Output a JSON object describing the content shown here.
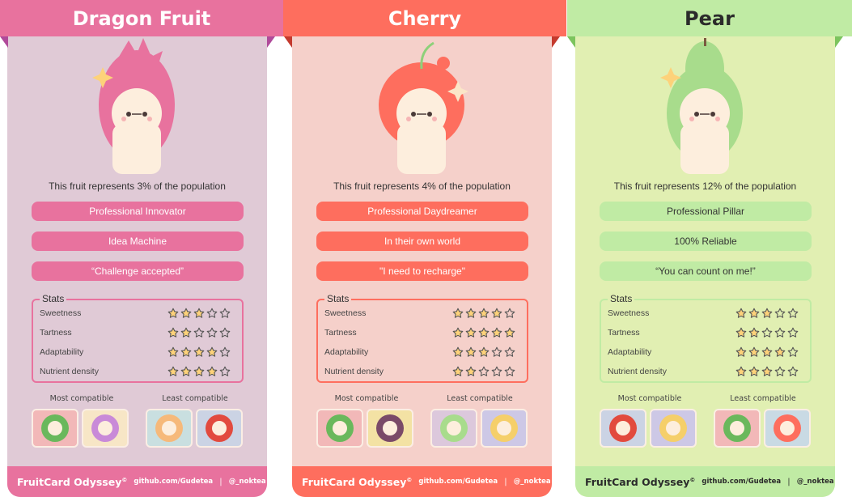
{
  "cards": [
    {
      "title": "Dragon Fruit",
      "population_text": "This fruit represents 3% of the population",
      "traits": [
        "Professional Innovator",
        "Idea Machine",
        "“Challenge accepted”"
      ],
      "stats_title": "Stats",
      "stats": [
        {
          "label": "Sweetness",
          "rating": 3
        },
        {
          "label": "Tartness",
          "rating": 2
        },
        {
          "label": "Adaptability",
          "rating": 4
        },
        {
          "label": "Nutrient density",
          "rating": 4
        }
      ],
      "most_compatible_label": "Most compatible",
      "least_compatible_label": "Least compatible",
      "most_compatible": [
        "watermelon",
        "grape"
      ],
      "least_compatible": [
        "orange",
        "apple"
      ],
      "footer": {
        "brand": "FruitCard Odyssey",
        "mark": "©",
        "github": "github.com/Gudetea",
        "separator": "|",
        "handle": "@_noktea"
      },
      "colors": {
        "banner": "#e8729e",
        "banner_text": "#ffffff",
        "body": "#e0cad6",
        "pill": "#e8729e",
        "pill_text": "#ffffff",
        "fold": "#b04a9a",
        "footer": "#e8729e",
        "footer_text": "#ffffff",
        "fruit": "#e8729e"
      }
    },
    {
      "title": "Cherry",
      "population_text": "This fruit represents 4% of the population",
      "traits": [
        "Professional Daydreamer",
        "In their own world",
        "\"I need to recharge\""
      ],
      "stats_title": "Stats",
      "stats": [
        {
          "label": "Sweetness",
          "rating": 4
        },
        {
          "label": "Tartness",
          "rating": 5
        },
        {
          "label": "Adaptability",
          "rating": 3
        },
        {
          "label": "Nutrient density",
          "rating": 2
        }
      ],
      "most_compatible_label": "Most compatible",
      "least_compatible_label": "Least compatible",
      "most_compatible": [
        "watermelon",
        "fig"
      ],
      "least_compatible": [
        "pear",
        "banana"
      ],
      "footer": {
        "brand": "FruitCard Odyssey",
        "mark": "©",
        "github": "github.com/Gudetea",
        "separator": "|",
        "handle": "@_noktea"
      },
      "colors": {
        "banner": "#fe6e5e",
        "banner_text": "#ffffff",
        "body": "#f5d0ca",
        "pill": "#fe6e5e",
        "pill_text": "#ffffff",
        "fold": "#c43a2e",
        "footer": "#fe6e5e",
        "footer_text": "#ffffff",
        "fruit": "#fe6e5e"
      }
    },
    {
      "title": "Pear",
      "population_text": "This fruit represents 12% of the population",
      "traits": [
        "Professional Pillar",
        "100% Reliable",
        "“You can count on me!”"
      ],
      "stats_title": "Stats",
      "stats": [
        {
          "label": "Sweetness",
          "rating": 3
        },
        {
          "label": "Tartness",
          "rating": 2
        },
        {
          "label": "Adaptability",
          "rating": 4
        },
        {
          "label": "Nutrient density",
          "rating": 3
        }
      ],
      "most_compatible_label": "Most compatible",
      "least_compatible_label": "Least compatible",
      "most_compatible": [
        "apple",
        "banana"
      ],
      "least_compatible": [
        "watermelon",
        "cherry"
      ],
      "footer": {
        "brand": "FruitCard Odyssey",
        "mark": "©",
        "github": "github.com/Gudetea",
        "separator": "|",
        "handle": "@_noktea"
      },
      "colors": {
        "banner": "#c0eba4",
        "banner_text": "#2b2b2b",
        "body": "#e1efb2",
        "pill": "#c0eba4",
        "pill_text": "#333333",
        "fold": "#7cc45e",
        "footer": "#c0eba4",
        "footer_text": "#2b2b2b",
        "fruit": "#a8dc8c"
      }
    }
  ],
  "star_colors": {
    "filled": "#fdd27a",
    "outline": "#555555"
  },
  "tile_fruits": {
    "watermelon": {
      "bg": "#f2b8b8",
      "fruit": "#6ab85c"
    },
    "grape": {
      "bg": "#f7e6c6",
      "fruit": "#c98ad8"
    },
    "orange": {
      "bg": "#c9dfe0",
      "fruit": "#f6b97a"
    },
    "apple": {
      "bg": "#cbd3e4",
      "fruit": "#e24a3e"
    },
    "fig": {
      "bg": "#f3e2a4",
      "fruit": "#7a4a68"
    },
    "pear": {
      "bg": "#dcc8dc",
      "fruit": "#a8dc8c"
    },
    "banana": {
      "bg": "#cdc8e6",
      "fruit": "#f5cf6a"
    },
    "cherry": {
      "bg": "#c9dae4",
      "fruit": "#fe6e5e"
    }
  }
}
